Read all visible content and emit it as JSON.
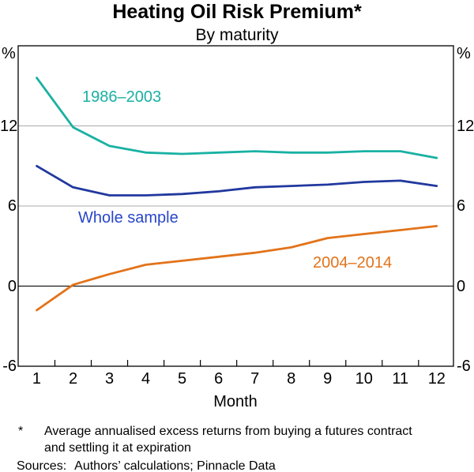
{
  "title": "Heating Oil Risk Premium*",
  "subtitle": "By maturity",
  "y_axis": {
    "unit_left": "%",
    "unit_right": "%"
  },
  "footnote": {
    "marker": "*",
    "lines": [
      "Average annualised excess returns from buying a futures contract",
      "and settling it at expiration"
    ]
  },
  "sources": {
    "label": "Sources:",
    "text": "Authors’ calculations; Pinnacle Data"
  },
  "chart_data": {
    "type": "line",
    "title": "Heating Oil Risk Premium*",
    "subtitle": "By maturity",
    "xlabel": "Month",
    "ylabel": "%",
    "x": [
      1,
      2,
      3,
      4,
      5,
      6,
      7,
      8,
      9,
      10,
      11,
      12
    ],
    "xlim": [
      0.49,
      12.46
    ],
    "ylim": [
      -6,
      18
    ],
    "y_ticks": [
      -6,
      0,
      6,
      12
    ],
    "gridlines": [
      6,
      12
    ],
    "zero_line": 0,
    "x_minor_ticks": [
      1.5,
      2.5,
      3.5,
      4.5,
      5.5,
      6.5,
      7.5,
      8.5,
      9.5,
      10.5,
      11.5
    ],
    "grid_color": "#ababab",
    "zero_line_color": "#1a1a1a",
    "frame_color": "#000000",
    "legend_position": "inline-labels",
    "series": [
      {
        "name": "1986–2003",
        "color": "#18b1a3",
        "label_color": "#18b1a3",
        "values": [
          15.6,
          11.9,
          10.5,
          10.0,
          9.9,
          10.0,
          10.1,
          10.0,
          10.0,
          10.1,
          10.1,
          9.6
        ]
      },
      {
        "name": "Whole sample",
        "color": "#21389e",
        "label_color": "#2946c8",
        "values": [
          9.0,
          7.4,
          6.8,
          6.8,
          6.9,
          7.1,
          7.4,
          7.5,
          7.6,
          7.8,
          7.9,
          7.5
        ]
      },
      {
        "name": "2004–2014",
        "color": "#e2731a",
        "label_color": "#e2731a",
        "values": [
          -1.8,
          0.1,
          0.9,
          1.6,
          1.9,
          2.2,
          2.5,
          2.9,
          3.6,
          3.9,
          4.2,
          4.5
        ]
      }
    ]
  }
}
